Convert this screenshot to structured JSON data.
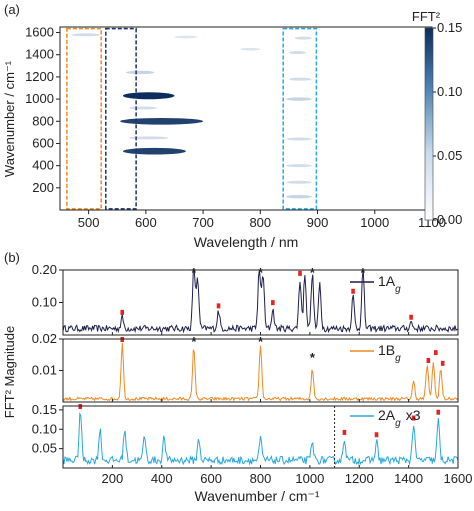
{
  "chart_data": [
    {
      "type": "heatmap",
      "panel_label": "(a)",
      "xlabel": "Wavelength / nm",
      "ylabel": "Wavenumber / cm⁻¹",
      "xlim": [
        450,
        1100
      ],
      "ylim": [
        0,
        1650
      ],
      "xticks": [
        "500",
        "600",
        "700",
        "800",
        "900",
        "1000",
        "1100"
      ],
      "xtick_values": [
        500,
        600,
        700,
        800,
        900,
        1000,
        1100
      ],
      "yticks": [
        "200",
        "400",
        "600",
        "800",
        "1000",
        "1200",
        "1400",
        "1600"
      ],
      "ytick_values": [
        200,
        400,
        600,
        800,
        1000,
        1200,
        1400,
        1600
      ],
      "colorbar": {
        "title": "FFT²",
        "ticks": [
          "0.00",
          "0.05",
          "0.10",
          "0.15"
        ],
        "tick_values": [
          0.0,
          0.05,
          0.1,
          0.15
        ],
        "range": [
          0,
          0.15
        ],
        "colors": [
          "#ffffff",
          "#0b2e5e"
        ]
      },
      "highlight_boxes": [
        {
          "x": [
            462,
            522
          ],
          "y": [
            10,
            1635
          ],
          "color": "#f08a24"
        },
        {
          "x": [
            530,
            583
          ],
          "y": [
            10,
            1635
          ],
          "color": "#1f2f6b"
        },
        {
          "x": [
            840,
            898
          ],
          "y": [
            10,
            1635
          ],
          "color": "#2aa8e0"
        }
      ],
      "bands": [
        {
          "wavenumber": 1030,
          "x_range": [
            560,
            650
          ],
          "intensity": 0.15
        },
        {
          "wavenumber": 800,
          "x_range": [
            555,
            700
          ],
          "intensity": 0.14
        },
        {
          "wavenumber": 530,
          "x_range": [
            560,
            670
          ],
          "intensity": 0.14
        },
        {
          "wavenumber": 1240,
          "x_range": [
            565,
            615
          ],
          "intensity": 0.04
        },
        {
          "wavenumber": 920,
          "x_range": [
            570,
            620
          ],
          "intensity": 0.03
        },
        {
          "wavenumber": 650,
          "x_range": [
            570,
            640
          ],
          "intensity": 0.03
        },
        {
          "wavenumber": 1580,
          "x_range": [
            470,
            520
          ],
          "intensity": 0.03
        },
        {
          "wavenumber": 1550,
          "x_range": [
            860,
            890
          ],
          "intensity": 0.03
        },
        {
          "wavenumber": 1420,
          "x_range": [
            850,
            880
          ],
          "intensity": 0.03
        },
        {
          "wavenumber": 1180,
          "x_range": [
            850,
            890
          ],
          "intensity": 0.03
        },
        {
          "wavenumber": 1000,
          "x_range": [
            845,
            890
          ],
          "intensity": 0.04
        },
        {
          "wavenumber": 640,
          "x_range": [
            845,
            890
          ],
          "intensity": 0.03
        },
        {
          "wavenumber": 400,
          "x_range": [
            845,
            890
          ],
          "intensity": 0.03
        },
        {
          "wavenumber": 250,
          "x_range": [
            845,
            890
          ],
          "intensity": 0.03
        },
        {
          "wavenumber": 120,
          "x_range": [
            845,
            890
          ],
          "intensity": 0.04
        },
        {
          "wavenumber": 1560,
          "x_range": [
            650,
            690
          ],
          "intensity": 0.02
        },
        {
          "wavenumber": 1450,
          "x_range": [
            765,
            800
          ],
          "intensity": 0.02
        }
      ]
    },
    {
      "type": "line",
      "panel_label": "(b)",
      "xlabel": "Wavenumber / cm⁻¹",
      "ylabel": "FFT² Magnitude",
      "xlim": [
        0,
        1600
      ],
      "xticks": [
        "200",
        "400",
        "600",
        "800",
        "1000",
        "1200",
        "1400",
        "1600"
      ],
      "xtick_values": [
        200,
        400,
        600,
        800,
        1000,
        1200,
        1400,
        1600
      ],
      "subplots": [
        {
          "name_main": "1A",
          "name_sub": "g",
          "color": "#1f1f4f",
          "ylim": [
            0,
            0.2
          ],
          "yticks": [
            "0.10",
            "0.20"
          ],
          "ytick_values": [
            0.1,
            0.2
          ],
          "baseline": 0.02,
          "peaks": [
            {
              "x": 240,
              "y": 0.055
            },
            {
              "x": 530,
              "y": 0.21
            },
            {
              "x": 545,
              "y": 0.18
            },
            {
              "x": 630,
              "y": 0.075
            },
            {
              "x": 795,
              "y": 0.21
            },
            {
              "x": 810,
              "y": 0.19
            },
            {
              "x": 850,
              "y": 0.08
            },
            {
              "x": 960,
              "y": 0.17
            },
            {
              "x": 980,
              "y": 0.19
            },
            {
              "x": 1010,
              "y": 0.19
            },
            {
              "x": 1040,
              "y": 0.16
            },
            {
              "x": 1175,
              "y": 0.12
            },
            {
              "x": 1215,
              "y": 0.2
            },
            {
              "x": 1410,
              "y": 0.04
            }
          ],
          "red_markers": [
            {
              "x": 240,
              "y": 0.065
            },
            {
              "x": 630,
              "y": 0.085
            },
            {
              "x": 850,
              "y": 0.095
            },
            {
              "x": 960,
              "y": 0.185
            },
            {
              "x": 1175,
              "y": 0.13
            },
            {
              "x": 1410,
              "y": 0.05
            }
          ],
          "star_markers": [
            {
              "x": 530,
              "y": 0.2
            },
            {
              "x": 800,
              "y": 0.2
            },
            {
              "x": 1010,
              "y": 0.2
            },
            {
              "x": 1215,
              "y": 0.2
            }
          ]
        },
        {
          "name_main": "1B",
          "name_sub": "g",
          "color": "#f08a24",
          "ylim": [
            0,
            0.02
          ],
          "yticks": [
            "0.01",
            "0.02"
          ],
          "ytick_values": [
            0.01,
            0.02
          ],
          "baseline": 0.001,
          "peaks": [
            {
              "x": 240,
              "y": 0.0185
            },
            {
              "x": 530,
              "y": 0.0175
            },
            {
              "x": 800,
              "y": 0.018
            },
            {
              "x": 1010,
              "y": 0.0105
            },
            {
              "x": 1420,
              "y": 0.0065
            },
            {
              "x": 1475,
              "y": 0.0118
            },
            {
              "x": 1500,
              "y": 0.0125
            },
            {
              "x": 1530,
              "y": 0.0105
            }
          ],
          "red_markers": [
            {
              "x": 240,
              "y": 0.0197
            },
            {
              "x": 1480,
              "y": 0.0127
            },
            {
              "x": 1510,
              "y": 0.0152
            },
            {
              "x": 1538,
              "y": 0.0118
            }
          ],
          "star_markers": [
            {
              "x": 530,
              "y": 0.019
            },
            {
              "x": 800,
              "y": 0.019
            },
            {
              "x": 1010,
              "y": 0.0127
            }
          ]
        },
        {
          "name_main": "2A",
          "name_sub": "g",
          "suffix": "x3",
          "color": "#2aa8e0",
          "ylim": [
            0,
            0.16
          ],
          "yticks": [
            "0.05",
            "0.10",
            "0.15"
          ],
          "ytick_values": [
            0.05,
            0.1,
            0.15
          ],
          "baseline": 0.02,
          "scale_change_at": 1100,
          "peaks": [
            {
              "x": 70,
              "y": 0.148
            },
            {
              "x": 150,
              "y": 0.1
            },
            {
              "x": 250,
              "y": 0.1
            },
            {
              "x": 330,
              "y": 0.085
            },
            {
              "x": 410,
              "y": 0.08
            },
            {
              "x": 550,
              "y": 0.075
            },
            {
              "x": 800,
              "y": 0.075
            },
            {
              "x": 1010,
              "y": 0.065
            },
            {
              "x": 1140,
              "y": 0.078
            },
            {
              "x": 1270,
              "y": 0.07
            },
            {
              "x": 1420,
              "y": 0.115
            },
            {
              "x": 1520,
              "y": 0.125
            }
          ],
          "red_markers": [
            {
              "x": 70,
              "y": 0.157
            },
            {
              "x": 1140,
              "y": 0.088
            },
            {
              "x": 1270,
              "y": 0.082
            },
            {
              "x": 1420,
              "y": 0.125
            },
            {
              "x": 1520,
              "y": 0.14
            }
          ],
          "star_markers": []
        }
      ]
    }
  ]
}
